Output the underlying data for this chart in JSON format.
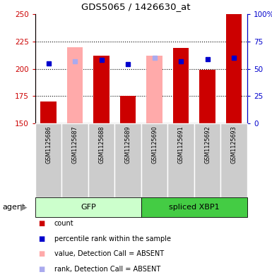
{
  "title": "GDS5065 / 1426630_at",
  "samples": [
    "GSM1125686",
    "GSM1125687",
    "GSM1125688",
    "GSM1125689",
    "GSM1125690",
    "GSM1125691",
    "GSM1125692",
    "GSM1125693"
  ],
  "bar_baseline": 150,
  "red_values": [
    170,
    null,
    212,
    175,
    null,
    219,
    199,
    250
  ],
  "pink_values": [
    null,
    220,
    null,
    null,
    212,
    null,
    null,
    null
  ],
  "blue_squares": [
    205,
    null,
    208,
    204,
    null,
    207,
    209,
    210
  ],
  "light_blue_squares": [
    null,
    207,
    null,
    null,
    210,
    null,
    null,
    null
  ],
  "ylim_left": [
    150,
    250
  ],
  "ylim_right": [
    0,
    100
  ],
  "yticks_left": [
    150,
    175,
    200,
    225,
    250
  ],
  "yticks_right": [
    0,
    25,
    50,
    75,
    100
  ],
  "bar_width": 0.6,
  "red_color": "#cc0000",
  "pink_color": "#ffaaaa",
  "blue_color": "#0000cc",
  "light_blue_color": "#aaaaee",
  "gfp_color_light": "#ccffcc",
  "gfp_color_dark": "#44cc44",
  "sample_bg": "#cccccc",
  "legend_items": [
    {
      "color": "#cc0000",
      "label": "count"
    },
    {
      "color": "#0000cc",
      "label": "percentile rank within the sample"
    },
    {
      "color": "#ffaaaa",
      "label": "value, Detection Call = ABSENT"
    },
    {
      "color": "#aaaaee",
      "label": "rank, Detection Call = ABSENT"
    }
  ]
}
